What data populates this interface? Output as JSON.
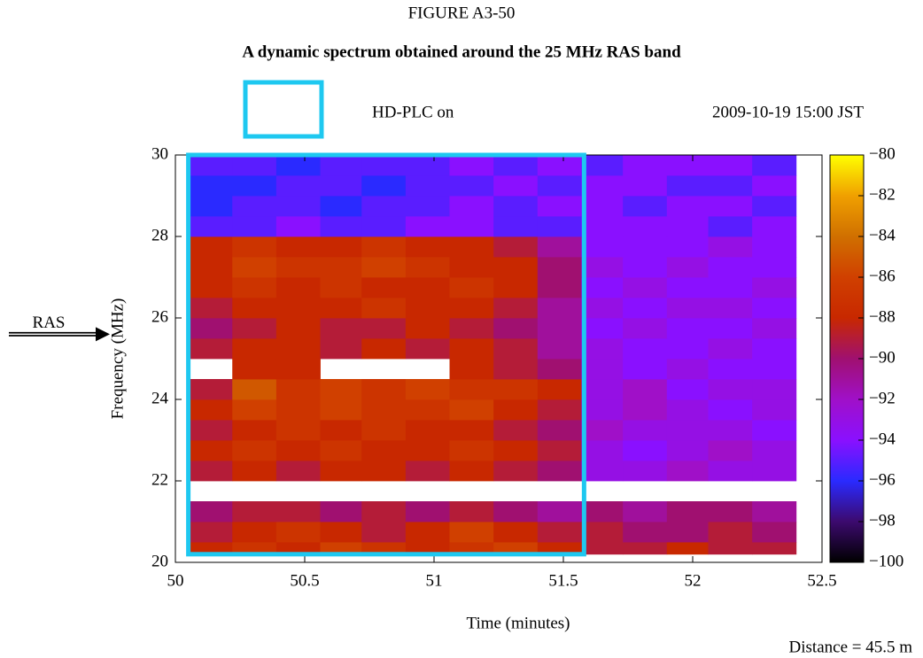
{
  "chart_data": {
    "type": "heatmap",
    "figure_label": "FIGURE A3-50",
    "title": "A dynamic spectrum obtained around the 25 MHz RAS band",
    "legend_label": "HD-PLC on",
    "legend_color": "#1ec8f0",
    "timestamp": "2009-10-19 15:00 JST",
    "xlabel": "Time (minutes)",
    "ylabel": "Frequency (MHz)",
    "footnote": "Distance = 45.5 m",
    "annotation": {
      "text": "RAS",
      "y": 25.6
    },
    "highlight": {
      "x": [
        50.05,
        51.58
      ],
      "y": [
        20.2,
        30
      ]
    },
    "xlim": [
      50,
      52.5
    ],
    "xticks": [
      50,
      50.5,
      51,
      51.5,
      52,
      52.5
    ],
    "ylim": [
      20,
      30
    ],
    "yticks": [
      20,
      22,
      24,
      26,
      28,
      30
    ],
    "zlim": [
      -100,
      -80
    ],
    "zticks": [
      {
        "value": -80,
        "label": "−80"
      },
      {
        "value": -82,
        "label": "−82"
      },
      {
        "value": -84,
        "label": "−84"
      },
      {
        "value": -86,
        "label": "−86"
      },
      {
        "value": -88,
        "label": "−88"
      },
      {
        "value": -90,
        "label": "−90"
      },
      {
        "value": -92,
        "label": "−92"
      },
      {
        "value": -94,
        "label": "−94"
      },
      {
        "value": -96,
        "label": "−96"
      },
      {
        "value": -98,
        "label": "−98"
      },
      {
        "value": -100,
        "label": "−100"
      }
    ],
    "colormap": [
      "#000000",
      "#3c0a6e",
      "#2a2aff",
      "#8a10ff",
      "#a010c8",
      "#a01070",
      "#c82800",
      "#d04000",
      "#d07000",
      "#f0a000",
      "#ffff00"
    ],
    "x": [
      50.05,
      50.22,
      50.39,
      50.56,
      50.72,
      50.89,
      51.06,
      51.23,
      51.4,
      51.57,
      51.73,
      51.9,
      52.06,
      52.23,
      52.4
    ],
    "y": [
      20.2,
      20.5,
      21.0,
      21.5,
      22.0,
      22.5,
      23.0,
      23.5,
      24.0,
      24.5,
      25.0,
      25.5,
      26.0,
      26.5,
      27.0,
      27.5,
      28.0,
      28.5,
      29.0,
      29.5,
      30.0
    ],
    "z": [
      [
        -88,
        -87,
        -88,
        -86,
        -87,
        -88,
        -87,
        -86,
        -88,
        -89,
        -89,
        -88,
        -89,
        -89
      ],
      [
        -89,
        -88,
        -87,
        -88,
        -89,
        -88,
        -86,
        -88,
        -89,
        -89,
        -90,
        -90,
        -89,
        -90
      ],
      [
        -90,
        -89,
        -89,
        -90,
        -89,
        -90,
        -89,
        -90,
        -91,
        -90,
        -91,
        -90,
        -90,
        -91
      ],
      [
        null,
        null,
        null,
        null,
        null,
        null,
        null,
        null,
        null,
        null,
        null,
        null,
        null,
        null
      ],
      [
        -89,
        -88,
        -89,
        -88,
        -88,
        -89,
        -88,
        -89,
        -90,
        -93,
        -93,
        -92,
        -93,
        -93
      ],
      [
        -88,
        -87,
        -88,
        -87,
        -88,
        -88,
        -87,
        -88,
        -89,
        -93,
        -94,
        -93,
        -92,
        -93
      ],
      [
        -89,
        -88,
        -87,
        -88,
        -87,
        -88,
        -88,
        -89,
        -90,
        -92,
        -93,
        -93,
        -93,
        -94
      ],
      [
        -88,
        -86,
        -87,
        -86,
        -87,
        -87,
        -86,
        -88,
        -89,
        -93,
        -92,
        -93,
        -94,
        -93
      ],
      [
        -89,
        -85,
        -87,
        -86,
        -87,
        -86,
        -87,
        -87,
        -88,
        -93,
        -92,
        -94,
        -93,
        -93
      ],
      [
        null,
        -88,
        -88,
        null,
        null,
        null,
        -88,
        -89,
        -90,
        -93,
        -94,
        -93,
        -94,
        -94
      ],
      [
        -89,
        -88,
        -88,
        -89,
        -88,
        -89,
        -88,
        -89,
        -91,
        -93,
        -94,
        -94,
        -93,
        -94
      ],
      [
        -90,
        -89,
        -88,
        -89,
        -89,
        -88,
        -89,
        -90,
        -91,
        -94,
        -93,
        -94,
        -94,
        -93
      ],
      [
        -89,
        -88,
        -88,
        -88,
        -87,
        -88,
        -88,
        -89,
        -91,
        -93,
        -94,
        -93,
        -93,
        -94
      ],
      [
        -88,
        -87,
        -88,
        -87,
        -88,
        -88,
        -87,
        -88,
        -90,
        -94,
        -93,
        -94,
        -94,
        -93
      ],
      [
        -88,
        -86,
        -87,
        -87,
        -86,
        -87,
        -88,
        -88,
        -90,
        -93,
        -94,
        -93,
        -94,
        -94
      ],
      [
        -88,
        -87,
        -88,
        -88,
        -87,
        -88,
        -88,
        -89,
        -91,
        -94,
        -94,
        -94,
        -93,
        -94
      ],
      [
        -95,
        -95,
        -94,
        -95,
        -95,
        -94,
        -94,
        -95,
        -95,
        -94,
        -94,
        -94,
        -95,
        -94
      ],
      [
        -96,
        -95,
        -95,
        -96,
        -95,
        -95,
        -94,
        -95,
        -94,
        -94,
        -95,
        -94,
        -94,
        -95
      ],
      [
        -96,
        -96,
        -95,
        -95,
        -96,
        -95,
        -95,
        -94,
        -95,
        -94,
        -94,
        -95,
        -95,
        -94
      ],
      [
        -95,
        -95,
        -96,
        -95,
        -95,
        -95,
        -94,
        -95,
        -94,
        -95,
        -94,
        -94,
        -94,
        -95
      ]
    ]
  }
}
